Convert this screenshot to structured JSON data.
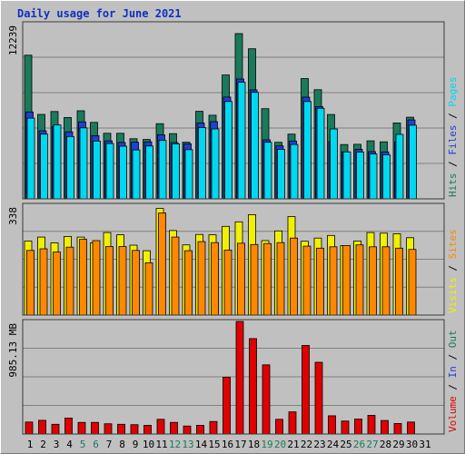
{
  "title": "Daily usage for June 2021",
  "chart_data": [
    {
      "type": "bar",
      "panel": "top",
      "ylabel_max": "12239",
      "ylim": [
        0,
        12239
      ],
      "legend": [
        {
          "name": "Hits",
          "color": "#1a7a5c"
        },
        {
          "name": "Files",
          "color": "#2040d0"
        },
        {
          "name": "Pages",
          "color": "#00d8f0"
        }
      ],
      "categories": [
        "1",
        "2",
        "3",
        "4",
        "5",
        "6",
        "7",
        "8",
        "9",
        "10",
        "11",
        "12",
        "13",
        "14",
        "15",
        "16",
        "17",
        "18",
        "19",
        "20",
        "21",
        "22",
        "23",
        "24",
        "25",
        "26",
        "27",
        "28",
        "29",
        "30"
      ],
      "series": [
        {
          "name": "Hits",
          "values": [
            10030,
            5900,
            6100,
            5680,
            6150,
            5340,
            4580,
            4580,
            4200,
            4150,
            5250,
            4550,
            3960,
            6110,
            5840,
            8650,
            11540,
            10480,
            6300,
            3950,
            4520,
            8400,
            7620,
            5890,
            3790,
            3810,
            4050,
            3980,
            5300,
            5700
          ]
        },
        {
          "name": "Files",
          "values": [
            6070,
            4750,
            5040,
            4680,
            5380,
            4410,
            4050,
            3940,
            3960,
            3980,
            4470,
            3930,
            3840,
            5300,
            5390,
            7110,
            8370,
            7610,
            4120,
            3700,
            4040,
            7100,
            6440,
            4000,
            3280,
            3460,
            3300,
            3280,
            3980,
            5510
          ]
        },
        {
          "name": "Pages",
          "values": [
            5640,
            4520,
            5160,
            4350,
            4960,
            4030,
            3860,
            3680,
            3420,
            3690,
            4080,
            3840,
            3440,
            4980,
            4880,
            6800,
            8140,
            7440,
            3950,
            3450,
            3790,
            6800,
            6320,
            4880,
            3280,
            3270,
            3140,
            3080,
            4500,
            5140
          ]
        }
      ]
    },
    {
      "type": "bar",
      "panel": "middle",
      "ylabel_max": "338",
      "ylim": [
        0,
        338
      ],
      "legend": [
        {
          "name": "Visits",
          "color": "#f0f000"
        },
        {
          "name": "Sites",
          "color": "#ff8800"
        }
      ],
      "categories": [
        "1",
        "2",
        "3",
        "4",
        "5",
        "6",
        "7",
        "8",
        "9",
        "10",
        "11",
        "12",
        "13",
        "14",
        "15",
        "16",
        "17",
        "18",
        "19",
        "20",
        "21",
        "22",
        "23",
        "24",
        "25",
        "26",
        "27",
        "28",
        "29",
        "30"
      ],
      "series": [
        {
          "name": "Visits",
          "values": [
            228,
            240,
            222,
            242,
            240,
            222,
            254,
            247,
            215,
            198,
            328,
            260,
            216,
            248,
            247,
            273,
            287,
            309,
            229,
            259,
            303,
            227,
            237,
            245,
            214,
            228,
            254,
            252,
            250,
            238
          ]
        },
        {
          "name": "Sites",
          "values": [
            199,
            204,
            194,
            209,
            233,
            229,
            211,
            211,
            199,
            161,
            314,
            240,
            198,
            226,
            223,
            200,
            221,
            217,
            220,
            223,
            237,
            212,
            206,
            210,
            214,
            216,
            210,
            210,
            206,
            202
          ]
        }
      ]
    },
    {
      "type": "bar",
      "panel": "bottom",
      "ylabel_max": "985.13 MB",
      "ylim": [
        0,
        985.13
      ],
      "legend": [
        {
          "name": "Volume",
          "color": "#e00000"
        },
        {
          "name": "In",
          "color": "#2040d0"
        },
        {
          "name": "Out",
          "color": "#1a7a5c"
        }
      ],
      "categories": [
        "1",
        "2",
        "3",
        "4",
        "5",
        "6",
        "7",
        "8",
        "9",
        "10",
        "11",
        "12",
        "13",
        "14",
        "15",
        "16",
        "17",
        "18",
        "19",
        "20",
        "21",
        "22",
        "23",
        "24",
        "25",
        "26",
        "27",
        "28",
        "29",
        "30"
      ],
      "series": [
        {
          "name": "Volume",
          "values": [
            105,
            120,
            85,
            140,
            102,
            102,
            90,
            85,
            82,
            76,
            129,
            102,
            70,
            76,
            110,
            497,
            985,
            835,
            605,
            129,
            194,
            775,
            628,
            160,
            114,
            131,
            164,
            118,
            92,
            105
          ]
        }
      ]
    }
  ],
  "x_labels": [
    {
      "text": "1",
      "color": "#000000"
    },
    {
      "text": "2",
      "color": "#000000"
    },
    {
      "text": "3",
      "color": "#000000"
    },
    {
      "text": "4",
      "color": "#000000"
    },
    {
      "text": "5",
      "color": "#1a7a5c"
    },
    {
      "text": "6",
      "color": "#1a7a5c"
    },
    {
      "text": "7",
      "color": "#000000"
    },
    {
      "text": "8",
      "color": "#000000"
    },
    {
      "text": "9",
      "color": "#000000"
    },
    {
      "text": "10",
      "color": "#000000"
    },
    {
      "text": "11",
      "color": "#000000"
    },
    {
      "text": "12",
      "color": "#1a7a5c"
    },
    {
      "text": "13",
      "color": "#1a7a5c"
    },
    {
      "text": "14",
      "color": "#000000"
    },
    {
      "text": "15",
      "color": "#000000"
    },
    {
      "text": "16",
      "color": "#000000"
    },
    {
      "text": "17",
      "color": "#000000"
    },
    {
      "text": "18",
      "color": "#000000"
    },
    {
      "text": "19",
      "color": "#1a7a5c"
    },
    {
      "text": "20",
      "color": "#1a7a5c"
    },
    {
      "text": "21",
      "color": "#000000"
    },
    {
      "text": "22",
      "color": "#000000"
    },
    {
      "text": "23",
      "color": "#000000"
    },
    {
      "text": "24",
      "color": "#000000"
    },
    {
      "text": "25",
      "color": "#000000"
    },
    {
      "text": "26",
      "color": "#1a7a5c"
    },
    {
      "text": "27",
      "color": "#1a7a5c"
    },
    {
      "text": "28",
      "color": "#000000"
    },
    {
      "text": "29",
      "color": "#000000"
    },
    {
      "text": "30",
      "color": "#000000"
    },
    {
      "text": "31",
      "color": "#000000"
    }
  ]
}
